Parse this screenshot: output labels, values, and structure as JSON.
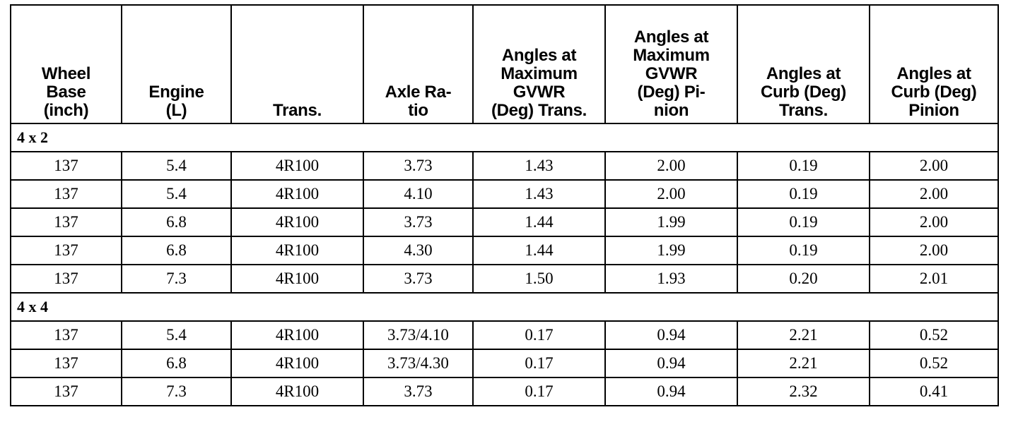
{
  "table": {
    "headers": [
      {
        "lines": [
          "Wheel",
          "Base",
          "(inch)"
        ]
      },
      {
        "lines": [
          "Engine",
          "(L)"
        ]
      },
      {
        "lines": [
          "Trans."
        ]
      },
      {
        "lines": [
          "Axle Ra-",
          "tio"
        ]
      },
      {
        "lines": [
          "Angles at",
          "Maximum",
          "GVWR",
          "(Deg) Trans."
        ]
      },
      {
        "lines": [
          "Angles at",
          "Maximum",
          "GVWR",
          "(Deg) Pi-",
          "nion"
        ]
      },
      {
        "lines": [
          "Angles at",
          "Curb (Deg)",
          "Trans."
        ]
      },
      {
        "lines": [
          "Angles at",
          "Curb (Deg)",
          "Pinion"
        ]
      }
    ],
    "groups": [
      {
        "label": "4 x 2",
        "rows": [
          [
            "137",
            "5.4",
            "4R100",
            "3.73",
            "1.43",
            "2.00",
            "0.19",
            "2.00"
          ],
          [
            "137",
            "5.4",
            "4R100",
            "4.10",
            "1.43",
            "2.00",
            "0.19",
            "2.00"
          ],
          [
            "137",
            "6.8",
            "4R100",
            "3.73",
            "1.44",
            "1.99",
            "0.19",
            "2.00"
          ],
          [
            "137",
            "6.8",
            "4R100",
            "4.30",
            "1.44",
            "1.99",
            "0.19",
            "2.00"
          ],
          [
            "137",
            "7.3",
            "4R100",
            "3.73",
            "1.50",
            "1.93",
            "0.20",
            "2.01"
          ]
        ]
      },
      {
        "label": "4 x 4",
        "rows": [
          [
            "137",
            "5.4",
            "4R100",
            "3.73/4.10",
            "0.17",
            "0.94",
            "2.21",
            "0.52"
          ],
          [
            "137",
            "6.8",
            "4R100",
            "3.73/4.30",
            "0.17",
            "0.94",
            "2.21",
            "0.52"
          ],
          [
            "137",
            "7.3",
            "4R100",
            "3.73",
            "0.17",
            "0.94",
            "2.32",
            "0.41"
          ]
        ]
      }
    ]
  }
}
